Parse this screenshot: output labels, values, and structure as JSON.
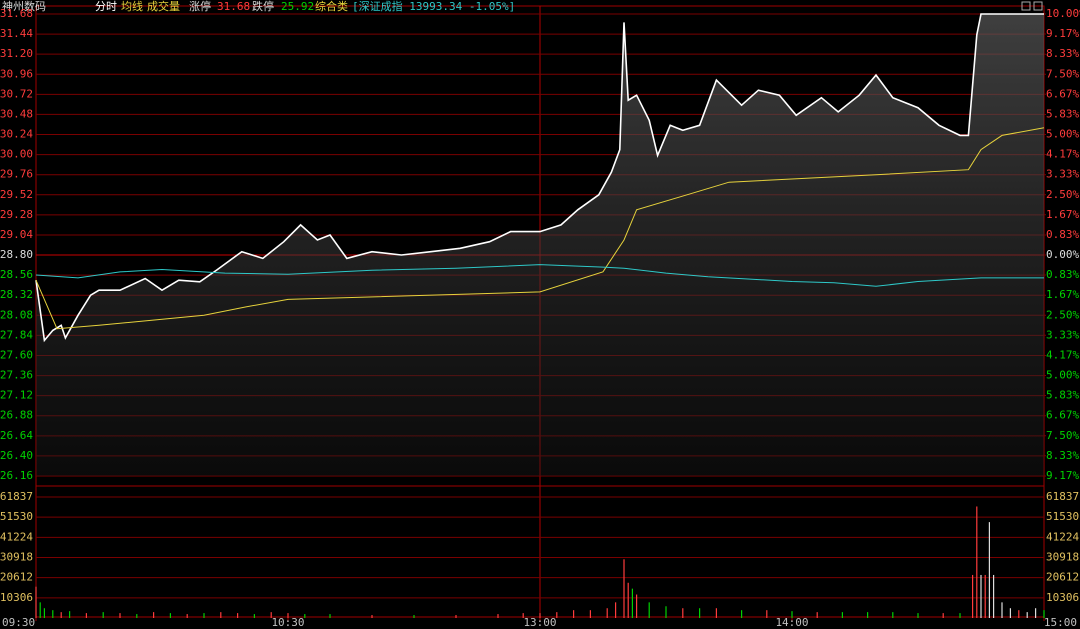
{
  "header": {
    "stock": "神州数码",
    "limit_up_label": "涨停",
    "limit_up": "31.68",
    "limit_down_label": "跌停",
    "limit_down": "25.92",
    "industry": "综合类",
    "index_info": "[深证成指 13993.34 -1.05%]"
  },
  "chart_data": [
    {
      "type": "line",
      "xlim": [
        0,
        240
      ],
      "ylim": [
        26.16,
        31.68
      ],
      "y2lim": [
        -9.17,
        10
      ],
      "base": 28.8,
      "yticks": [
        {
          "value": 31.68,
          "label": "31.68"
        },
        {
          "value": 31.44,
          "label": "31.44"
        },
        {
          "value": 31.2,
          "label": "31.20"
        },
        {
          "value": 30.96,
          "label": "30.96"
        },
        {
          "value": 30.72,
          "label": "30.72"
        },
        {
          "value": 30.48,
          "label": "30.48"
        },
        {
          "value": 30.24,
          "label": "30.24"
        },
        {
          "value": 30.0,
          "label": "30.00"
        },
        {
          "value": 29.76,
          "label": "29.76"
        },
        {
          "value": 29.52,
          "label": "29.52"
        },
        {
          "value": 29.28,
          "label": "29.28"
        },
        {
          "value": 29.04,
          "label": "29.04"
        },
        {
          "value": 28.8,
          "label": "28.80"
        },
        {
          "value": 28.56,
          "label": "28.56"
        },
        {
          "value": 28.32,
          "label": "28.32"
        },
        {
          "value": 28.08,
          "label": "28.08"
        },
        {
          "value": 27.84,
          "label": "27.84"
        },
        {
          "value": 27.6,
          "label": "27.60"
        },
        {
          "value": 27.36,
          "label": "27.36"
        },
        {
          "value": 27.12,
          "label": "27.12"
        },
        {
          "value": 26.88,
          "label": "26.88"
        },
        {
          "value": 26.64,
          "label": "26.64"
        },
        {
          "value": 26.4,
          "label": "26.40"
        },
        {
          "value": 26.16,
          "label": "26.16"
        }
      ],
      "y2ticks": [
        {
          "value": 10,
          "label": "10.00%"
        },
        {
          "value": 9.17,
          "label": "9.17%"
        },
        {
          "value": 8.33,
          "label": "8.33%"
        },
        {
          "value": 7.5,
          "label": "7.50%"
        },
        {
          "value": 6.67,
          "label": "6.67%"
        },
        {
          "value": 5.83,
          "label": "5.83%"
        },
        {
          "value": 5,
          "label": "5.00%"
        },
        {
          "value": 4.17,
          "label": "4.17%"
        },
        {
          "value": 3.33,
          "label": "3.33%"
        },
        {
          "value": 2.5,
          "label": "2.50%"
        },
        {
          "value": 1.67,
          "label": "1.67%"
        },
        {
          "value": 0.83,
          "label": "0.83%"
        },
        {
          "value": 0,
          "label": "0.00%"
        },
        {
          "value": -0.83,
          "label": "0.83%"
        },
        {
          "value": -1.67,
          "label": "1.67%"
        },
        {
          "value": -2.5,
          "label": "2.50%"
        },
        {
          "value": -3.33,
          "label": "3.33%"
        },
        {
          "value": -4.17,
          "label": "4.17%"
        },
        {
          "value": -5,
          "label": "5.00%"
        },
        {
          "value": -5.83,
          "label": "5.83%"
        },
        {
          "value": -6.67,
          "label": "6.67%"
        },
        {
          "value": -7.5,
          "label": "7.50%"
        },
        {
          "value": -8.33,
          "label": "8.33%"
        },
        {
          "value": -9.17,
          "label": "9.17%"
        }
      ],
      "up_color": "#ff3c3c",
      "down_color": "#00d200",
      "flat_color": "#dddddd",
      "grid_color": "#7a0000",
      "series": [
        {
          "name": "分时",
          "color": "#ffffff",
          "area": true,
          "x": [
            0,
            2,
            4,
            6,
            7,
            10,
            13,
            15,
            20,
            26,
            30,
            34,
            39,
            43,
            49,
            54,
            59,
            63,
            67,
            70,
            74,
            80,
            87,
            94,
            101,
            108,
            113,
            120,
            125,
            129,
            134,
            137,
            139,
            140,
            141,
            143,
            146,
            148,
            151,
            154,
            158,
            162,
            168,
            172,
            177,
            181,
            187,
            191,
            196,
            200,
            204,
            210,
            215,
            220,
            222,
            224,
            225,
            240
          ],
          "values": [
            28.5,
            27.78,
            27.9,
            27.96,
            27.81,
            28.08,
            28.32,
            28.38,
            28.38,
            28.52,
            28.38,
            28.5,
            28.48,
            28.62,
            28.84,
            28.76,
            28.96,
            29.16,
            28.98,
            29.04,
            28.76,
            28.84,
            28.8,
            28.84,
            28.88,
            28.96,
            29.08,
            29.08,
            29.16,
            29.34,
            29.52,
            29.79,
            30.06,
            31.58,
            30.65,
            30.71,
            30.41,
            29.99,
            30.35,
            30.29,
            30.35,
            30.89,
            30.59,
            30.77,
            30.71,
            30.47,
            30.68,
            30.51,
            30.71,
            30.95,
            30.68,
            30.56,
            30.35,
            30.23,
            30.23,
            31.43,
            31.68,
            31.68
          ]
        },
        {
          "name": "均线",
          "color": "#e6d23c",
          "x": [
            0,
            5,
            15,
            40,
            50,
            60,
            120,
            135,
            140,
            143,
            155,
            165,
            200,
            222,
            225,
            230,
            240
          ],
          "values": [
            28.5,
            27.92,
            27.96,
            28.08,
            28.18,
            28.27,
            28.36,
            28.6,
            28.98,
            29.34,
            29.52,
            29.67,
            29.76,
            29.82,
            30.06,
            30.23,
            30.32
          ]
        },
        {
          "color": "#2ec8c8",
          "axis": "y2",
          "x": [
            0,
            10,
            20,
            30,
            45,
            60,
            80,
            100,
            120,
            135,
            140,
            150,
            160,
            170,
            180,
            190,
            200,
            210,
            225,
            240
          ],
          "values": [
            -0.83,
            -0.95,
            -0.7,
            -0.6,
            -0.75,
            -0.8,
            -0.63,
            -0.55,
            -0.4,
            -0.5,
            -0.55,
            -0.75,
            -0.9,
            -1.0,
            -1.1,
            -1.15,
            -1.3,
            -1.1,
            -0.95,
            -0.95
          ]
        }
      ]
    },
    {
      "type": "bar",
      "xlim": [
        0,
        240
      ],
      "ylim": [
        0,
        61837
      ],
      "yticks": [
        10306,
        20612,
        30918,
        41224,
        51530,
        61837
      ],
      "xticks": [
        {
          "value": 0,
          "label": "09:30"
        },
        {
          "value": 60,
          "label": "10:30"
        },
        {
          "value": 120,
          "label": "13:00"
        },
        {
          "value": 180,
          "label": "14:00"
        },
        {
          "value": 240,
          "label": "15:00"
        }
      ],
      "series": [
        {
          "name": "成交量",
          "x": [
            0,
            1,
            2,
            4,
            6,
            8,
            12,
            16,
            20,
            24,
            28,
            32,
            36,
            40,
            44,
            48,
            52,
            56,
            60,
            64,
            70,
            80,
            90,
            100,
            110,
            116,
            120,
            124,
            128,
            132,
            136,
            138,
            140,
            141,
            142,
            143,
            146,
            150,
            154,
            158,
            162,
            168,
            174,
            180,
            186,
            192,
            198,
            204,
            210,
            216,
            220,
            223,
            224,
            225,
            226,
            227,
            228,
            230,
            232,
            234,
            236,
            238,
            240
          ],
          "values": [
            16000,
            8000,
            5000,
            4000,
            3000,
            3500,
            2500,
            3000,
            2500,
            2000,
            3000,
            2500,
            2000,
            2500,
            3000,
            2500,
            2000,
            3000,
            2500,
            2000,
            2000,
            1500,
            1500,
            1500,
            2000,
            2500,
            2500,
            3000,
            4000,
            4000,
            5000,
            8000,
            30000,
            18000,
            15000,
            12000,
            8000,
            6000,
            5000,
            5000,
            5000,
            4000,
            4000,
            3500,
            3000,
            3000,
            3000,
            3000,
            2500,
            2500,
            2500,
            22000,
            57000,
            22000,
            22000,
            49000,
            22000,
            8000,
            5000,
            4000,
            3000,
            5000,
            4000
          ],
          "colors": [
            "#ff3c3c",
            "#00d200",
            "#00d200",
            "#00d200",
            "#ff3c3c",
            "#00d200",
            "#ff3c3c",
            "#00d200",
            "#ff3c3c",
            "#00d200",
            "#ff3c3c",
            "#00d200",
            "#ff3c3c",
            "#00d200",
            "#ff3c3c",
            "#ff3c3c",
            "#00d200",
            "#ff3c3c",
            "#ff3c3c",
            "#00d200",
            "#00d200",
            "#ff3c3c",
            "#00d200",
            "#ff3c3c",
            "#ff3c3c",
            "#ff3c3c",
            "#ff3c3c",
            "#ff3c3c",
            "#ff3c3c",
            "#ff3c3c",
            "#ff3c3c",
            "#ff3c3c",
            "#ff3c3c",
            "#ff3c3c",
            "#00d200",
            "#ff3c3c",
            "#00d200",
            "#00d200",
            "#ff3c3c",
            "#00d200",
            "#ff3c3c",
            "#00d200",
            "#ff3c3c",
            "#00d200",
            "#ff3c3c",
            "#00d200",
            "#00d200",
            "#00d200",
            "#00d200",
            "#ff3c3c",
            "#00d200",
            "#ff3c3c",
            "#ff3c3c",
            "#dddddd",
            "#ff3c3c",
            "#dddddd",
            "#dddddd",
            "#dddddd",
            "#dddddd",
            "#ff3c3c",
            "#dddddd",
            "#dddddd",
            "#00d200"
          ]
        }
      ]
    }
  ]
}
